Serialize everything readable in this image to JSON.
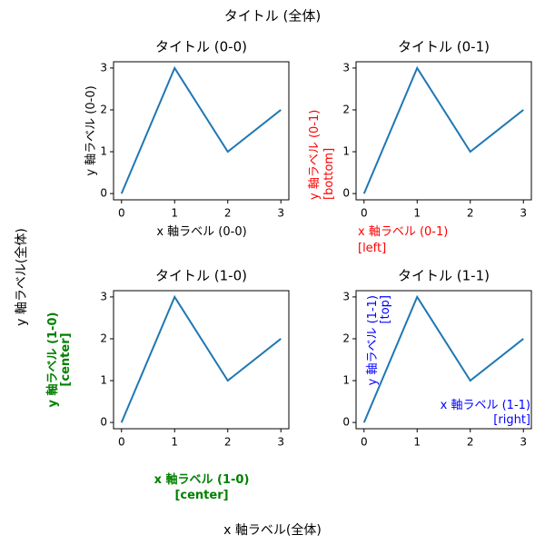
{
  "title": "タイトル (全体)",
  "x_label": "x 軸ラベル(全体)",
  "y_label": "y 軸ラベル(全体)",
  "chart_data": [
    {
      "type": "line",
      "title": "タイトル (0-0)",
      "x": [
        0,
        1,
        2,
        3
      ],
      "series": [
        {
          "color": "#1f77b4",
          "values": [
            0,
            3,
            1,
            2
          ]
        }
      ],
      "xlim": [
        -0.15,
        3.15
      ],
      "ylim": [
        -0.15,
        3.15
      ],
      "xticks": [
        0,
        1,
        2,
        3
      ],
      "yticks": [
        0,
        1,
        2,
        3
      ],
      "x_label": {
        "text": "x 軸ラベル (0-0)",
        "color": "#000000",
        "loc": "center",
        "bold": false
      },
      "y_label": {
        "text": "y 軸ラベル (0-0)",
        "color": "#000000",
        "loc": "center",
        "bold": false
      }
    },
    {
      "type": "line",
      "title": "タイトル (0-1)",
      "x": [
        0,
        1,
        2,
        3
      ],
      "series": [
        {
          "color": "#1f77b4",
          "values": [
            0,
            3,
            1,
            2
          ]
        }
      ],
      "xlim": [
        -0.15,
        3.15
      ],
      "ylim": [
        -0.15,
        3.15
      ],
      "xticks": [
        0,
        1,
        2,
        3
      ],
      "yticks": [
        0,
        1,
        2,
        3
      ],
      "x_label": {
        "text": "x 軸ラベル (0-1)\n[left]",
        "color": "#ff0000",
        "loc": "left",
        "bold": false
      },
      "y_label": {
        "text": "y 軸ラベル (0-1)\n[bottom]",
        "color": "#ff0000",
        "loc": "bottom",
        "bold": false
      }
    },
    {
      "type": "line",
      "title": "タイトル (1-0)",
      "x": [
        0,
        1,
        2,
        3
      ],
      "series": [
        {
          "color": "#1f77b4",
          "values": [
            0,
            3,
            1,
            2
          ]
        }
      ],
      "xlim": [
        -0.15,
        3.15
      ],
      "ylim": [
        -0.15,
        3.15
      ],
      "xticks": [
        0,
        1,
        2,
        3
      ],
      "yticks": [
        0,
        1,
        2,
        3
      ],
      "x_label": {
        "text": "x 軸ラベル (1-0)\n[center]",
        "color": "#008000",
        "loc": "center",
        "bold": true
      },
      "y_label": {
        "text": "y 軸ラベル (1-0)\n[center]",
        "color": "#008000",
        "loc": "center",
        "bold": true
      }
    },
    {
      "type": "line",
      "title": "タイトル (1-1)",
      "x": [
        0,
        1,
        2,
        3
      ],
      "series": [
        {
          "color": "#1f77b4",
          "values": [
            0,
            3,
            1,
            2
          ]
        }
      ],
      "xlim": [
        -0.15,
        3.15
      ],
      "ylim": [
        -0.15,
        3.15
      ],
      "xticks": [
        0,
        1,
        2,
        3
      ],
      "yticks": [
        0,
        1,
        2,
        3
      ],
      "x_label": {
        "text": "x 軸ラベル (1-1)\n[right]",
        "color": "#0000ff",
        "loc": "right",
        "bold": false
      },
      "y_label": {
        "text": "y 軸ラベル (1-1)\n[top]",
        "color": "#0000ff",
        "loc": "top",
        "bold": false
      }
    }
  ]
}
